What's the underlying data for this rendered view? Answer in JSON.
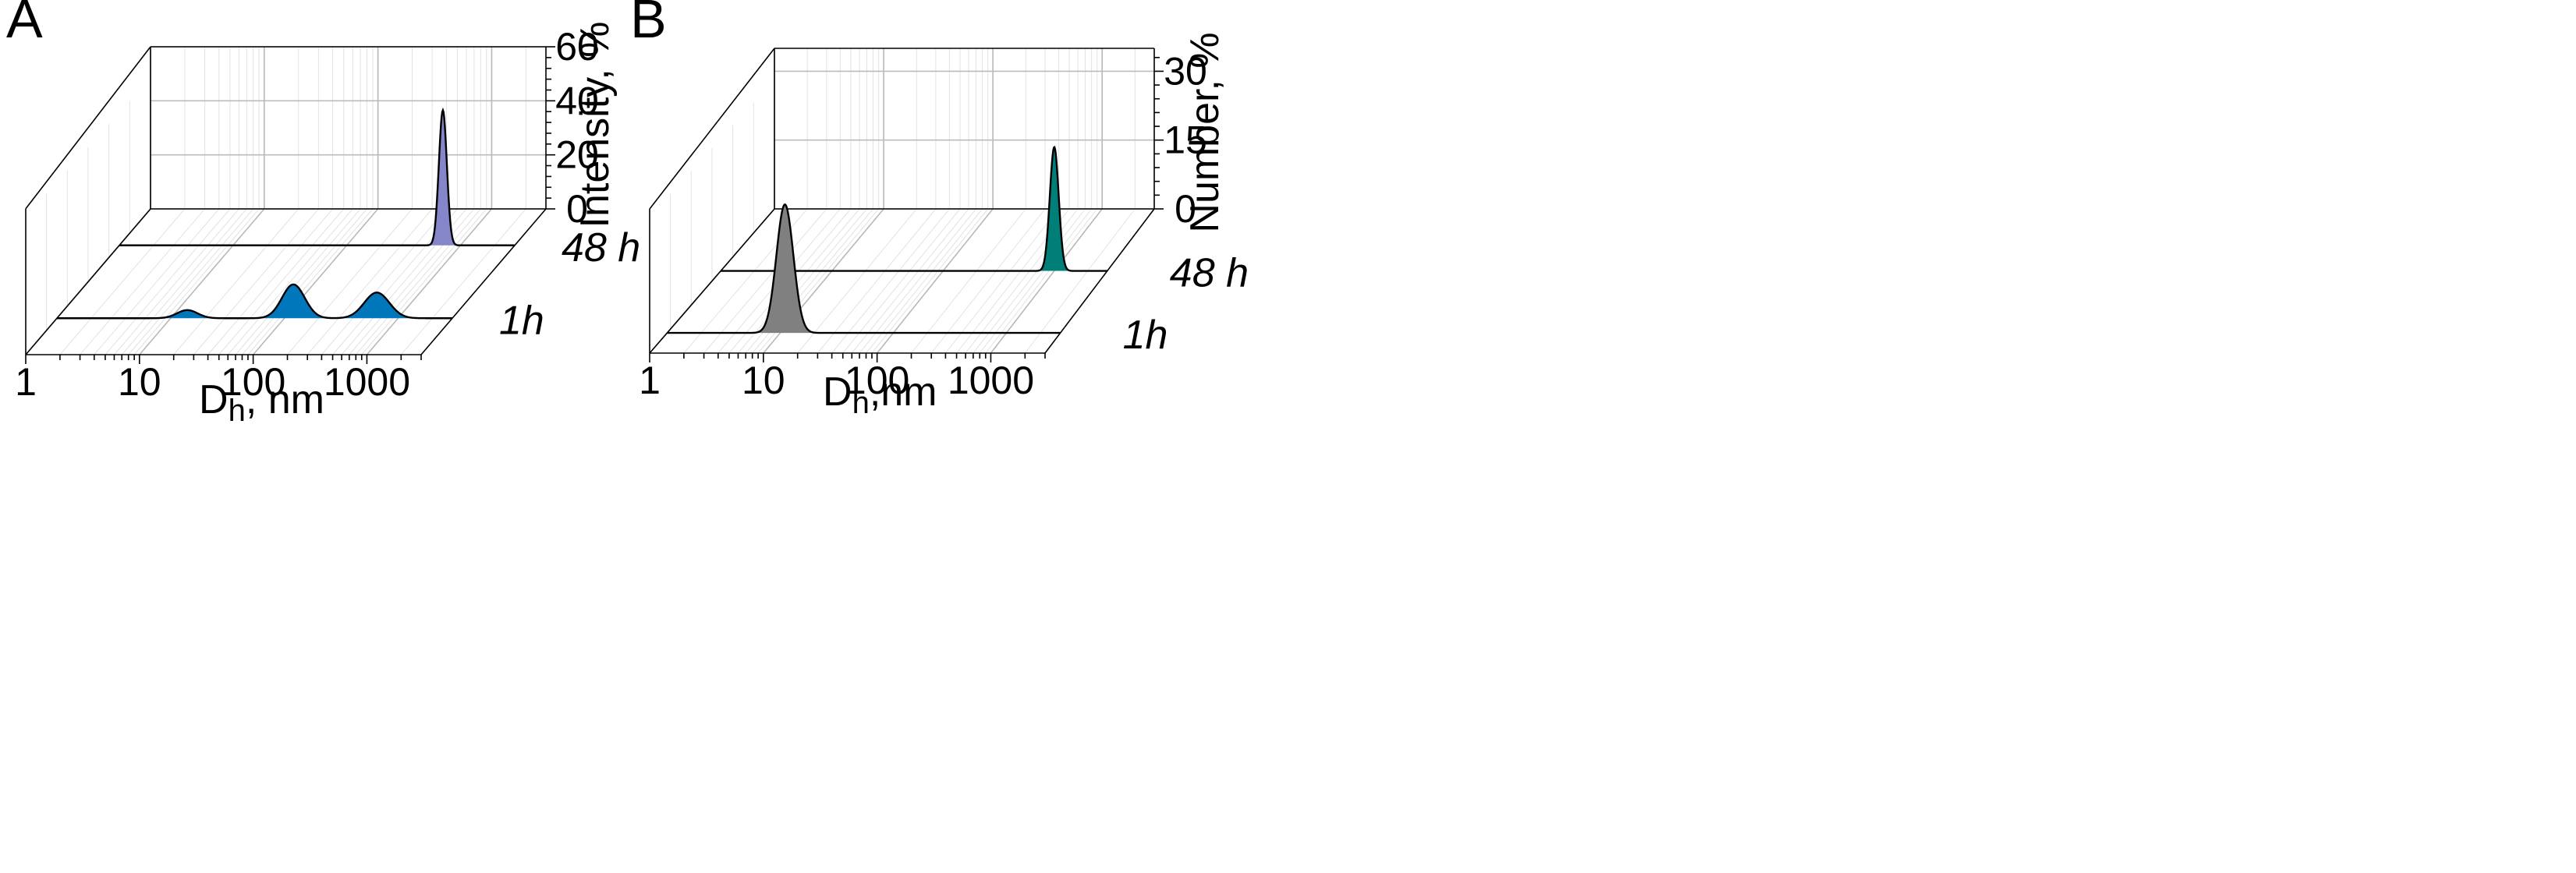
{
  "figure": {
    "panel_labels": [
      "A",
      "B"
    ]
  },
  "colors": {
    "intensity_48h": "#8585c9",
    "intensity_1h": "#0077bb",
    "number_1h": "#808080",
    "number_48h": "#007f79"
  },
  "chart_data": [
    {
      "type": "area",
      "panel": "A",
      "x_scale": "log",
      "xlim": [
        1,
        3000
      ],
      "xticks": [
        1,
        10,
        100,
        1000
      ],
      "xtick_labels": [
        "1",
        "10",
        "100",
        "1000"
      ],
      "xlabel_main": "D",
      "xlabel_sub": "h",
      "xlabel_rest": ", nm",
      "ylabel": "Intensity, %",
      "ylim": [
        0,
        60
      ],
      "yticks": [
        0,
        20,
        40,
        60
      ],
      "ytick_labels": [
        "0",
        "20",
        "40",
        "60"
      ],
      "series": [
        {
          "name": "48 h",
          "color_key": "intensity_48h",
          "peaks": [
            {
              "center": 700,
              "height": 50,
              "log_sigma": 0.035
            }
          ]
        },
        {
          "name": "1h",
          "color_key": "intensity_1h",
          "peaks": [
            {
              "center": 14,
              "height": 3,
              "log_sigma": 0.09
            },
            {
              "center": 120,
              "height": 12.5,
              "log_sigma": 0.1
            },
            {
              "center": 650,
              "height": 9.5,
              "log_sigma": 0.11
            }
          ]
        }
      ]
    },
    {
      "type": "area",
      "panel": "B",
      "x_scale": "log",
      "xlim": [
        1,
        3000
      ],
      "xticks": [
        1,
        10,
        100,
        1000
      ],
      "xtick_labels": [
        "1",
        "10",
        "100",
        "1000"
      ],
      "xlabel_main": "D",
      "xlabel_sub": "h",
      "xlabel_rest": ",nm",
      "ylabel": "Number, %",
      "ylim": [
        0,
        35
      ],
      "yticks": [
        0,
        15,
        30
      ],
      "ytick_labels": [
        "0",
        "15",
        "30"
      ],
      "series": [
        {
          "name": "48 h",
          "color_key": "number_48h",
          "peaks": [
            {
              "center": 1000,
              "height": 27,
              "log_sigma": 0.04
            }
          ]
        },
        {
          "name": "1h",
          "color_key": "number_1h",
          "peaks": [
            {
              "center": 11,
              "height": 28,
              "log_sigma": 0.075
            }
          ]
        }
      ]
    }
  ]
}
